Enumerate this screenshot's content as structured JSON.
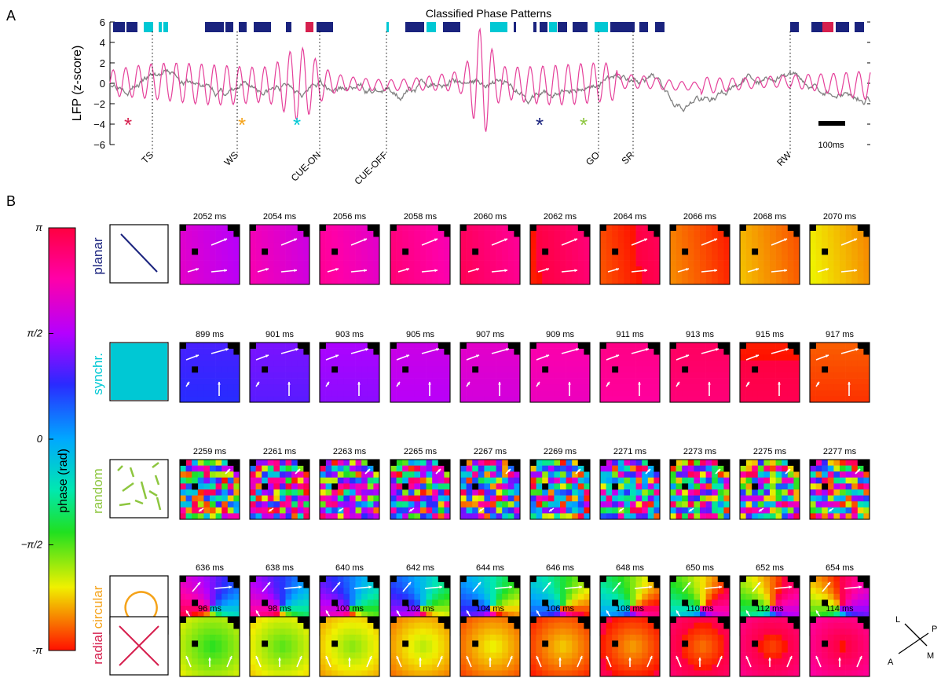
{
  "panel_a": {
    "label": "A",
    "title": "Classified Phase Patterns",
    "ylabel": "LFP (z-score)",
    "yticks": [
      "6",
      "4",
      "2",
      "0",
      "−2",
      "−4",
      "−6"
    ],
    "events": [
      "TS",
      "WS",
      "CUE-ON",
      "CUE-OFF",
      "GO",
      "SR",
      "RW"
    ],
    "scalebar_label": "100ms",
    "asterisk": "*"
  },
  "panel_b": {
    "label": "B",
    "colorbar": {
      "label": "phase (rad)",
      "ticks": [
        "π",
        "π/2",
        "0",
        "−π/2",
        "-π"
      ]
    },
    "rows": [
      {
        "name": "planar",
        "color": "#1a237e",
        "times": [
          "2052 ms",
          "2054 ms",
          "2056 ms",
          "2058 ms",
          "2060 ms",
          "2062 ms",
          "2064 ms",
          "2066 ms",
          "2068 ms",
          "2070 ms"
        ]
      },
      {
        "name": "synchr.",
        "color": "#00c8d4",
        "times": [
          "899 ms",
          "901 ms",
          "903 ms",
          "905 ms",
          "907 ms",
          "909 ms",
          "911 ms",
          "913 ms",
          "915 ms",
          "917 ms"
        ]
      },
      {
        "name": "random",
        "color": "#8dc63f",
        "times": [
          "2259 ms",
          "2261 ms",
          "2263 ms",
          "2265 ms",
          "2267 ms",
          "2269 ms",
          "2271 ms",
          "2273 ms",
          "2275 ms",
          "2277 ms"
        ]
      },
      {
        "name": "circular",
        "color": "#f5a31a",
        "times": [
          "636 ms",
          "638 ms",
          "640 ms",
          "642 ms",
          "644 ms",
          "646 ms",
          "648 ms",
          "650 ms",
          "652 ms",
          "654 ms"
        ]
      },
      {
        "name": "radial",
        "color": "#d6204e",
        "times": [
          "96 ms",
          "98 ms",
          "100 ms",
          "102 ms",
          "104 ms",
          "106 ms",
          "108 ms",
          "110 ms",
          "112 ms",
          "114 ms"
        ]
      }
    ],
    "compass": [
      "L",
      "P",
      "A",
      "M"
    ]
  },
  "colors": {
    "planar": "#1a237e",
    "synchr": "#00c8d4",
    "random": "#8dc63f",
    "circular": "#f5a31a",
    "radial": "#d6204e",
    "lfp_raw": "#808080",
    "lfp_filtered": "#e5409a"
  }
}
